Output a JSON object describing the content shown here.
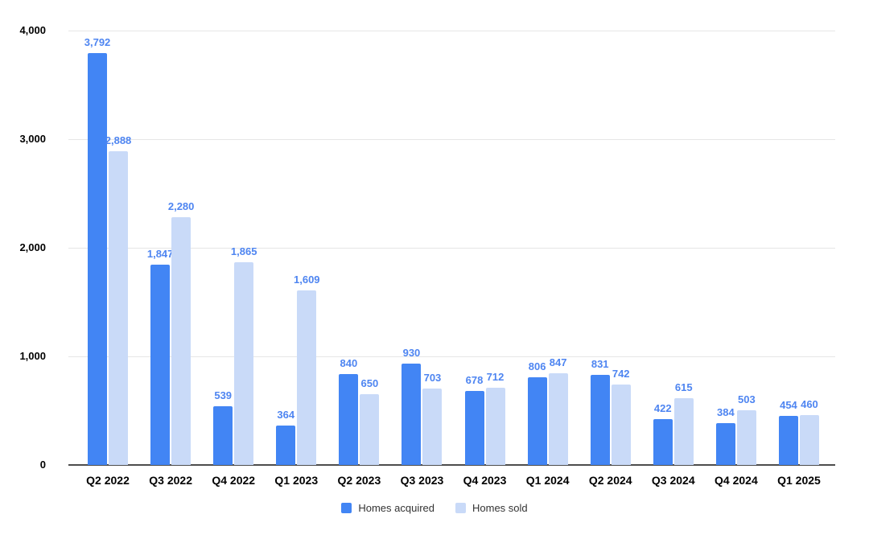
{
  "chart_data": {
    "type": "bar",
    "title": "",
    "xlabel": "",
    "ylabel": "",
    "categories": [
      "Q2 2022",
      "Q3 2022",
      "Q4 2022",
      "Q1 2023",
      "Q2 2023",
      "Q3 2023",
      "Q4 2023",
      "Q1 2024",
      "Q2 2024",
      "Q3 2024",
      "Q4 2024",
      "Q1 2025"
    ],
    "series": [
      {
        "name": "Homes acquired",
        "color": "#4285f4",
        "values": [
          3792,
          1847,
          539,
          364,
          840,
          930,
          678,
          806,
          831,
          422,
          384,
          454
        ]
      },
      {
        "name": "Homes sold",
        "color": "#c9daf8",
        "values": [
          2888,
          2280,
          1865,
          1609,
          650,
          703,
          712,
          847,
          742,
          615,
          503,
          460
        ]
      }
    ],
    "data_labels_shown": true,
    "ylim": [
      0,
      4000
    ],
    "ytick_values": [
      0,
      1000,
      2000,
      3000,
      4000
    ],
    "ytick_labels": [
      "0",
      "1,000",
      "2,000",
      "3,000",
      "4,000"
    ],
    "grid": true,
    "legend_position": "bottom"
  },
  "legend": {
    "items": [
      {
        "label": "Homes acquired",
        "color": "#4285f4"
      },
      {
        "label": "Homes sold",
        "color": "#c9daf8"
      }
    ]
  },
  "colors": {
    "series_acquired": "#4285f4",
    "series_sold": "#c9daf8",
    "data_label": "#4e85f1",
    "gridline": "#e6e6e6",
    "axis_baseline": "#4d4d4d",
    "axis_text": "#000000",
    "legend_text": "#333333",
    "background": "#ffffff"
  }
}
